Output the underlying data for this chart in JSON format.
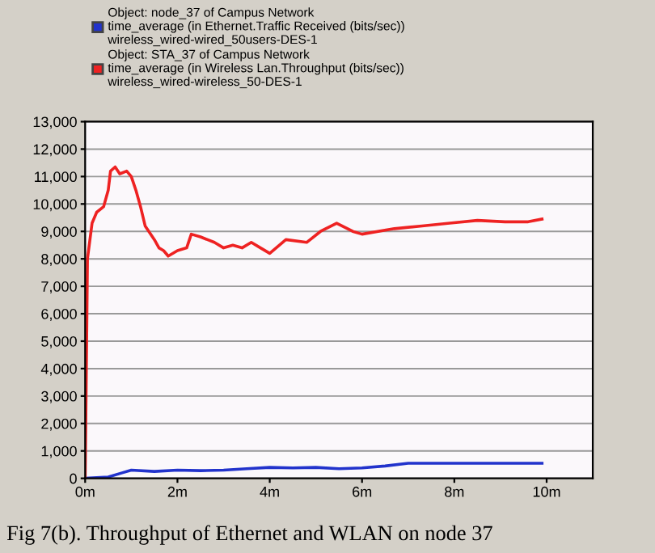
{
  "chart_data": {
    "type": "line",
    "x": [
      0,
      0.02,
      0.05,
      0.15,
      0.25,
      0.4,
      0.5,
      0.55,
      0.65,
      0.75,
      0.9,
      1.0,
      1.1,
      1.2,
      1.3,
      1.5,
      1.6,
      1.7,
      1.8,
      2.0,
      2.2,
      2.3,
      2.5,
      2.8,
      3.0,
      3.2,
      3.4,
      3.6,
      3.8,
      4.0,
      4.35,
      4.8,
      5.1,
      5.45,
      5.8,
      6.0,
      6.7,
      7.3,
      7.9,
      8.5,
      9.1,
      9.6,
      9.9
    ],
    "series": [
      {
        "name": "Object: node_37 of Campus Network\ntime_average (in Ethernet.Traffic Received (bits/sec))\nwireless_wired-wired_50users-DES-1",
        "color": "#2233cc",
        "x": [
          0,
          0.5,
          0.8,
          1.0,
          1.5,
          2.0,
          2.5,
          3.0,
          3.5,
          4.0,
          4.5,
          5.0,
          5.5,
          6.0,
          6.5,
          7.0,
          8.0,
          9.0,
          9.9
        ],
        "values": [
          0,
          50,
          200,
          300,
          250,
          300,
          280,
          300,
          350,
          400,
          380,
          400,
          350,
          380,
          450,
          550,
          550,
          550,
          550
        ]
      },
      {
        "name": "Object: STA_37 of Campus Network\ntime_average (in Wireless Lan.Throughput (bits/sec))\nwireless_wired-wireless_50-DES-1",
        "color": "#ee2222",
        "values": [
          0,
          3000,
          8000,
          9300,
          9700,
          9900,
          10500,
          11200,
          11350,
          11100,
          11200,
          11000,
          10500,
          9900,
          9200,
          8700,
          8400,
          8300,
          8100,
          8300,
          8400,
          8900,
          8800,
          8600,
          8400,
          8500,
          8400,
          8600,
          8400,
          8200,
          8700,
          8600,
          9000,
          9300,
          9000,
          8900,
          9100,
          9200,
          9300,
          9400,
          9350,
          9350,
          9450
        ]
      }
    ],
    "xlim": [
      0,
      11
    ],
    "xticks": [
      {
        "value": 0,
        "label": "0m"
      },
      {
        "value": 2,
        "label": "2m"
      },
      {
        "value": 4,
        "label": "4m"
      },
      {
        "value": 6,
        "label": "6m"
      },
      {
        "value": 8,
        "label": "8m"
      },
      {
        "value": 10,
        "label": "10m"
      }
    ],
    "ylim": [
      0,
      13000
    ],
    "yticks": [
      {
        "value": 0,
        "label": "0"
      },
      {
        "value": 1000,
        "label": "1,000"
      },
      {
        "value": 2000,
        "label": "2,000"
      },
      {
        "value": 3000,
        "label": "3,000"
      },
      {
        "value": 4000,
        "label": "4,000"
      },
      {
        "value": 5000,
        "label": "5,000"
      },
      {
        "value": 6000,
        "label": "6,000"
      },
      {
        "value": 7000,
        "label": "7,000"
      },
      {
        "value": 8000,
        "label": "8,000"
      },
      {
        "value": 9000,
        "label": "9,000"
      },
      {
        "value": 10000,
        "label": "10,000"
      },
      {
        "value": 11000,
        "label": "11,000"
      },
      {
        "value": 12000,
        "label": "12,000"
      },
      {
        "value": 13000,
        "label": "13,000"
      }
    ],
    "grid": "y",
    "legend": "top",
    "annotations": [
      "Fig 7(b). Throughput of Ethernet and WLAN on node 37"
    ]
  }
}
